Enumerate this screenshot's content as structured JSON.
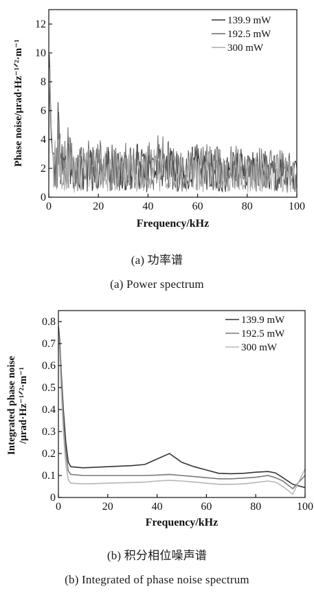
{
  "captions": {
    "a_cn": "(a) 功率谱",
    "a_en": "(a) Power spectrum",
    "b_cn": "(b) 积分相位噪声谱",
    "b_en": "(b) Integrated of phase noise spectrum"
  },
  "chart_data": [
    {
      "type": "line",
      "panel": "a",
      "xlabel": "Frequency/kHz",
      "ylabel_lines": [
        "Phase noise/μrad·Hz⁻¹ᐟ²·m⁻¹"
      ],
      "xlim": [
        0,
        100
      ],
      "ylim": [
        0,
        13
      ],
      "xticks": [
        0,
        20,
        40,
        60,
        80,
        100
      ],
      "yticks": [
        0,
        2,
        4,
        6,
        8,
        10,
        12
      ],
      "legend_position": "top-right",
      "series": [
        {
          "name": "139.9 mW",
          "color": "#333333",
          "x": [
            0,
            0.3,
            0.6,
            1,
            1.5,
            2,
            3,
            4,
            5,
            6,
            8,
            10,
            15,
            20,
            25,
            30,
            35,
            40,
            45,
            50,
            55,
            60,
            65,
            70,
            75,
            80,
            85,
            90,
            95,
            100
          ],
          "y": [
            1.0,
            9.0,
            6.0,
            4.0,
            3.0,
            2.5,
            2.2,
            4.2,
            1.8,
            2.0,
            2.5,
            1.6,
            2.0,
            1.8,
            2.1,
            1.7,
            2.2,
            1.6,
            2.0,
            1.9,
            1.7,
            2.1,
            1.8,
            1.6,
            2.0,
            1.8,
            1.7,
            1.9,
            1.6,
            1.4
          ]
        },
        {
          "name": "192.5 mW",
          "color": "#666666",
          "x": [
            0,
            0.3,
            0.6,
            1,
            1.5,
            2,
            3,
            4,
            5,
            6,
            8,
            10,
            15,
            20,
            25,
            30,
            35,
            40,
            45,
            50,
            55,
            60,
            65,
            70,
            75,
            80,
            85,
            90,
            95,
            100
          ],
          "y": [
            2.0,
            11.5,
            7.5,
            5.0,
            3.2,
            2.8,
            2.4,
            3.5,
            2.0,
            2.2,
            2.8,
            1.8,
            2.2,
            2.4,
            2.0,
            2.3,
            1.9,
            2.1,
            2.5,
            2.0,
            1.8,
            2.2,
            2.0,
            1.9,
            2.1,
            1.7,
            2.0,
            1.8,
            1.9,
            1.5
          ]
        },
        {
          "name": "300 mW",
          "color": "#aaaaaa",
          "x": [
            0,
            0.3,
            0.6,
            1,
            1.5,
            2,
            3,
            4,
            5,
            6,
            8,
            10,
            15,
            20,
            25,
            30,
            35,
            40,
            45,
            50,
            55,
            60,
            65,
            70,
            75,
            80,
            85,
            90,
            95,
            100
          ],
          "y": [
            1.5,
            10.5,
            7.0,
            4.5,
            3.0,
            2.6,
            2.0,
            3.0,
            1.6,
            1.8,
            2.2,
            1.5,
            1.9,
            2.0,
            1.7,
            1.9,
            1.6,
            1.8,
            2.0,
            1.7,
            1.5,
            1.8,
            1.7,
            1.5,
            1.8,
            1.5,
            1.6,
            1.5,
            1.6,
            1.3
          ]
        }
      ]
    },
    {
      "type": "line",
      "panel": "b",
      "xlabel": "Frequency/kHz",
      "ylabel_lines": [
        "Integrated phase noise",
        "/μrad·Hz⁻¹ᐟ²·m⁻¹"
      ],
      "xlim": [
        0,
        100
      ],
      "ylim": [
        0,
        0.85
      ],
      "xticks": [
        0,
        20,
        40,
        60,
        80,
        100
      ],
      "yticks": [
        0,
        0.1,
        0.2,
        0.3,
        0.4,
        0.5,
        0.6,
        0.7,
        0.8
      ],
      "legend_position": "top-right",
      "series": [
        {
          "name": "139.9 mW",
          "color": "#333333",
          "x": [
            0,
            0.5,
            1,
            2,
            3,
            4,
            5,
            10,
            20,
            30,
            35,
            40,
            45,
            50,
            55,
            60,
            65,
            70,
            75,
            80,
            85,
            88,
            91,
            95,
            100
          ],
          "y": [
            0.78,
            0.72,
            0.6,
            0.4,
            0.25,
            0.16,
            0.14,
            0.135,
            0.14,
            0.145,
            0.15,
            0.175,
            0.2,
            0.16,
            0.14,
            0.125,
            0.11,
            0.108,
            0.11,
            0.115,
            0.118,
            0.112,
            0.09,
            0.06,
            0.045
          ]
        },
        {
          "name": "192.5 mW",
          "color": "#777777",
          "x": [
            0,
            0.5,
            1,
            2,
            3,
            4,
            5,
            10,
            20,
            30,
            35,
            40,
            45,
            50,
            55,
            60,
            65,
            70,
            75,
            80,
            85,
            88,
            91,
            95,
            100
          ],
          "y": [
            0.76,
            0.7,
            0.58,
            0.36,
            0.2,
            0.12,
            0.105,
            0.1,
            0.1,
            0.1,
            0.1,
            0.102,
            0.105,
            0.1,
            0.095,
            0.09,
            0.085,
            0.085,
            0.088,
            0.092,
            0.1,
            0.09,
            0.075,
            0.04,
            0.1
          ]
        },
        {
          "name": "300 mW",
          "color": "#b5b5b5",
          "x": [
            0,
            0.5,
            1,
            2,
            3,
            4,
            5,
            10,
            20,
            30,
            35,
            40,
            45,
            50,
            55,
            60,
            65,
            70,
            75,
            80,
            85,
            88,
            91,
            95,
            100
          ],
          "y": [
            0.74,
            0.66,
            0.52,
            0.3,
            0.15,
            0.08,
            0.065,
            0.062,
            0.065,
            0.068,
            0.07,
            0.075,
            0.078,
            0.075,
            0.07,
            0.065,
            0.06,
            0.06,
            0.062,
            0.068,
            0.075,
            0.07,
            0.05,
            0.015,
            0.13
          ]
        }
      ]
    }
  ]
}
